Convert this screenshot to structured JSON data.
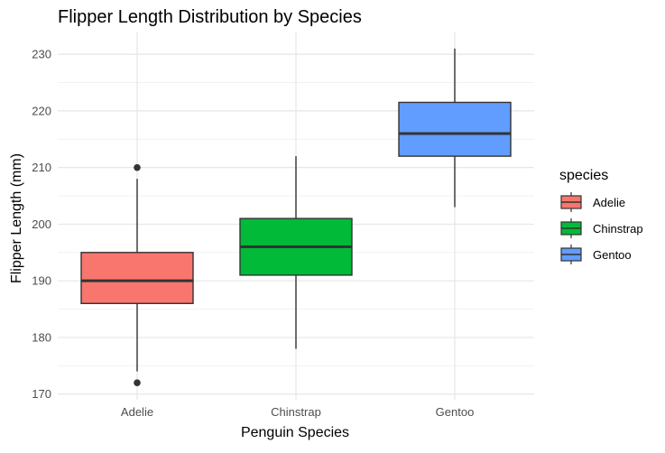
{
  "chart_data": {
    "type": "boxplot",
    "title": "Flipper Length Distribution by Species",
    "xlabel": "Penguin Species",
    "ylabel": "Flipper Length (mm)",
    "ylim": [
      169,
      234
    ],
    "yticks": [
      170,
      180,
      190,
      200,
      210,
      220,
      230
    ],
    "categories": [
      "Adelie",
      "Chinstrap",
      "Gentoo"
    ],
    "series": [
      {
        "name": "Adelie",
        "color": "#F8766D",
        "whisker_low": 174,
        "q1": 186,
        "median": 190,
        "q3": 195,
        "whisker_high": 208,
        "outliers": [
          210,
          172
        ]
      },
      {
        "name": "Chinstrap",
        "color": "#00BA38",
        "whisker_low": 178,
        "q1": 191,
        "median": 196,
        "q3": 201,
        "whisker_high": 212,
        "outliers": []
      },
      {
        "name": "Gentoo",
        "color": "#619CFF",
        "whisker_low": 203,
        "q1": 212,
        "median": 216,
        "q3": 221.5,
        "whisker_high": 231,
        "outliers": []
      }
    ],
    "legend": {
      "title": "species",
      "position": "right",
      "entries": [
        "Adelie",
        "Chinstrap",
        "Gentoo"
      ]
    },
    "grid": true
  }
}
